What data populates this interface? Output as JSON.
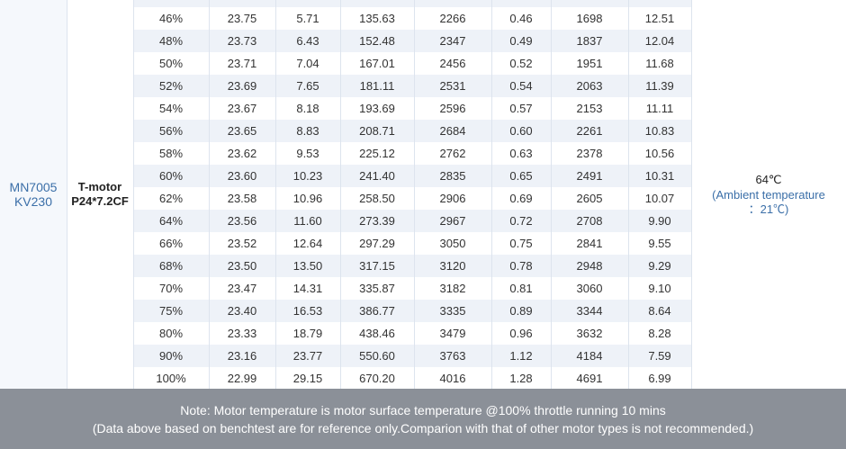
{
  "table": {
    "motor": [
      "MN7005",
      "KV230"
    ],
    "prop": [
      "T-motor",
      "P24*7.2CF"
    ],
    "temperature": "64℃",
    "ambient": [
      "(Ambient temperature",
      "：21℃)"
    ],
    "rows": [
      [
        "46%",
        "23.75",
        "5.71",
        "135.63",
        "2266",
        "0.46",
        "1698",
        "12.51"
      ],
      [
        "48%",
        "23.73",
        "6.43",
        "152.48",
        "2347",
        "0.49",
        "1837",
        "12.04"
      ],
      [
        "50%",
        "23.71",
        "7.04",
        "167.01",
        "2456",
        "0.52",
        "1951",
        "11.68"
      ],
      [
        "52%",
        "23.69",
        "7.65",
        "181.11",
        "2531",
        "0.54",
        "2063",
        "11.39"
      ],
      [
        "54%",
        "23.67",
        "8.18",
        "193.69",
        "2596",
        "0.57",
        "2153",
        "11.11"
      ],
      [
        "56%",
        "23.65",
        "8.83",
        "208.71",
        "2684",
        "0.60",
        "2261",
        "10.83"
      ],
      [
        "58%",
        "23.62",
        "9.53",
        "225.12",
        "2762",
        "0.63",
        "2378",
        "10.56"
      ],
      [
        "60%",
        "23.60",
        "10.23",
        "241.40",
        "2835",
        "0.65",
        "2491",
        "10.31"
      ],
      [
        "62%",
        "23.58",
        "10.96",
        "258.50",
        "2906",
        "0.69",
        "2605",
        "10.07"
      ],
      [
        "64%",
        "23.56",
        "11.60",
        "273.39",
        "2967",
        "0.72",
        "2708",
        "9.90"
      ],
      [
        "66%",
        "23.52",
        "12.64",
        "297.29",
        "3050",
        "0.75",
        "2841",
        "9.55"
      ],
      [
        "68%",
        "23.50",
        "13.50",
        "317.15",
        "3120",
        "0.78",
        "2948",
        "9.29"
      ],
      [
        "70%",
        "23.47",
        "14.31",
        "335.87",
        "3182",
        "0.81",
        "3060",
        "9.10"
      ],
      [
        "75%",
        "23.40",
        "16.53",
        "386.77",
        "3335",
        "0.89",
        "3344",
        "8.64"
      ],
      [
        "80%",
        "23.33",
        "18.79",
        "438.46",
        "3479",
        "0.96",
        "3632",
        "8.28"
      ],
      [
        "90%",
        "23.16",
        "23.77",
        "550.60",
        "3763",
        "1.12",
        "4184",
        "7.59"
      ],
      [
        "100%",
        "22.99",
        "29.15",
        "670.20",
        "4016",
        "1.28",
        "4691",
        "6.99"
      ]
    ]
  },
  "footer": {
    "lines": [
      "Note: Motor temperature is motor surface temperature @100% throttle running 10 mins",
      "(Data above based on benchtest are for reference only.Comparion with that of other motor types is not recommended.)"
    ]
  }
}
